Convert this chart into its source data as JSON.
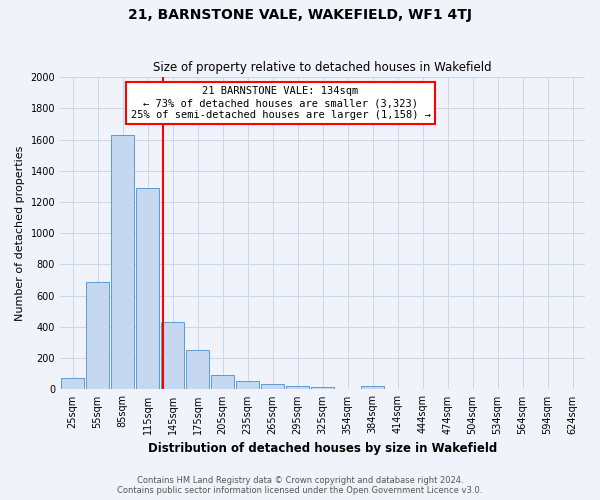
{
  "title": "21, BARNSTONE VALE, WAKEFIELD, WF1 4TJ",
  "subtitle": "Size of property relative to detached houses in Wakefield",
  "xlabel": "Distribution of detached houses by size in Wakefield",
  "ylabel": "Number of detached properties",
  "categories": [
    "25sqm",
    "55sqm",
    "85sqm",
    "115sqm",
    "145sqm",
    "175sqm",
    "205sqm",
    "235sqm",
    "265sqm",
    "295sqm",
    "325sqm",
    "354sqm",
    "384sqm",
    "414sqm",
    "444sqm",
    "474sqm",
    "504sqm",
    "534sqm",
    "564sqm",
    "594sqm",
    "624sqm"
  ],
  "values": [
    70,
    690,
    1630,
    1290,
    430,
    250,
    95,
    55,
    35,
    25,
    15,
    0,
    20,
    0,
    0,
    0,
    0,
    0,
    0,
    0,
    0
  ],
  "bar_color": "#c5d8f0",
  "bar_edge_color": "#5b9bd5",
  "vline_color": "red",
  "vline_pos": 3.63,
  "annotation_title": "21 BARNSTONE VALE: 134sqm",
  "annotation_line1": "← 73% of detached houses are smaller (3,323)",
  "annotation_line2": "25% of semi-detached houses are larger (1,158) →",
  "annotation_box_color": "white",
  "annotation_box_edge": "red",
  "ylim": [
    0,
    2000
  ],
  "yticks": [
    0,
    200,
    400,
    600,
    800,
    1000,
    1200,
    1400,
    1600,
    1800,
    2000
  ],
  "footer_line1": "Contains HM Land Registry data © Crown copyright and database right 2024.",
  "footer_line2": "Contains public sector information licensed under the Open Government Licence v3.0.",
  "bg_color": "#f0f4fa",
  "grid_color": "#c8d8e8",
  "title_fontsize": 10,
  "subtitle_fontsize": 8.5,
  "xlabel_fontsize": 8.5,
  "ylabel_fontsize": 8,
  "tick_fontsize": 7,
  "annotation_fontsize": 7.5,
  "footer_fontsize": 6
}
